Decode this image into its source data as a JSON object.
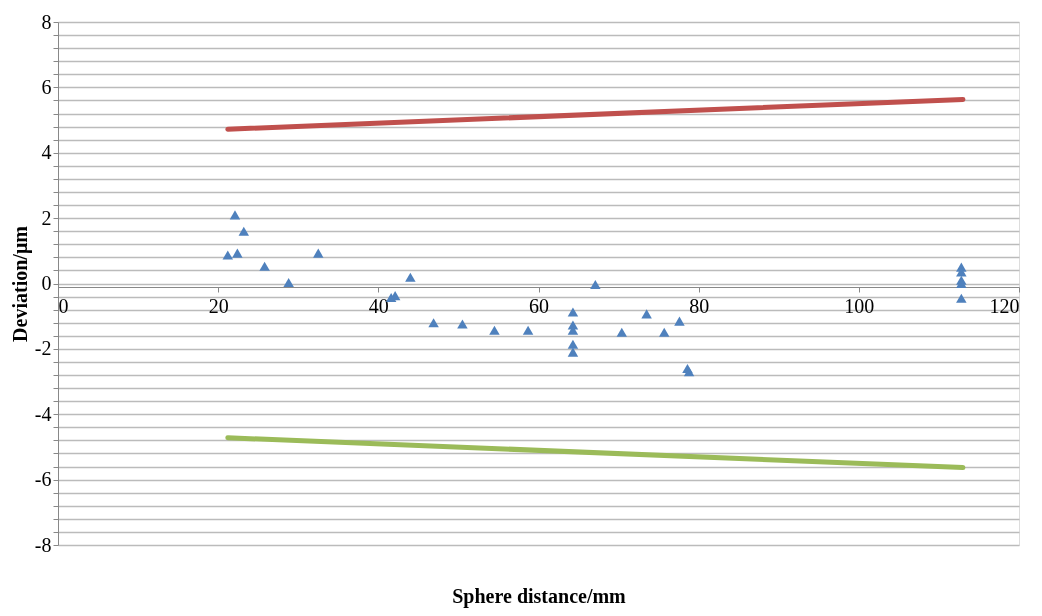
{
  "chart_data": {
    "type": "scatter",
    "xlabel": "Sphere distance/mm",
    "ylabel": "Deviation/μm",
    "xlim": [
      0,
      120
    ],
    "xticks": [
      0,
      20,
      40,
      60,
      80,
      100,
      120
    ],
    "ylim": [
      -8,
      8
    ],
    "yticks": [
      -8,
      {
        "value": -7.6,
        "label": null
      },
      {
        "value": -7.2,
        "label": null
      },
      {
        "value": -6.8,
        "label": null
      },
      {
        "value": -6.4,
        "label": null
      },
      -6,
      {
        "value": -5.6,
        "label": null
      },
      {
        "value": -5.2,
        "label": null
      },
      {
        "value": -4.8,
        "label": null
      },
      {
        "value": -4.4,
        "label": null
      },
      -4,
      {
        "value": -3.6,
        "label": null
      },
      {
        "value": -3.2,
        "label": null
      },
      {
        "value": -2.8,
        "label": null
      },
      {
        "value": -2.4,
        "label": null
      },
      -2,
      {
        "value": -1.6,
        "label": null
      },
      {
        "value": -1.2,
        "label": null
      },
      {
        "value": -0.8,
        "label": null
      },
      {
        "value": -0.4,
        "label": null
      },
      0,
      {
        "value": 0.4,
        "label": null
      },
      {
        "value": 0.8,
        "label": null
      },
      {
        "value": 1.2,
        "label": null
      },
      {
        "value": 1.6,
        "label": null
      },
      2,
      {
        "value": 2.4,
        "label": null
      },
      {
        "value": 2.8,
        "label": null
      },
      {
        "value": 3.2,
        "label": null
      },
      {
        "value": 3.6,
        "label": null
      },
      4,
      {
        "value": 4.4,
        "label": null
      },
      {
        "value": 4.8,
        "label": null
      },
      {
        "value": 5.2,
        "label": null
      },
      {
        "value": 5.6,
        "label": null
      },
      6,
      {
        "value": 6.4,
        "label": null
      },
      {
        "value": 6.8,
        "label": null
      },
      {
        "value": 7.2,
        "label": null
      },
      {
        "value": 7.6,
        "label": null
      },
      8
    ],
    "grid": "y",
    "marker": "triangle",
    "series": [
      {
        "color": "#4f81bd",
        "x": [
          21.2,
          22.1,
          22.4,
          23.2,
          25.8,
          28.8,
          32.5,
          41.6,
          42.1,
          44.0,
          46.9,
          50.5,
          54.5,
          58.7,
          64.3,
          64.3,
          64.3,
          64.3,
          64.3,
          67.1,
          70.4,
          73.5,
          75.7,
          77.6,
          78.6,
          78.8,
          112.8,
          112.8,
          112.8,
          112.8,
          112.8
        ],
        "values": [
          0.87,
          2.1,
          0.93,
          1.6,
          0.53,
          0.03,
          0.93,
          -0.43,
          -0.37,
          0.19,
          -1.2,
          -1.24,
          -1.43,
          -1.43,
          -0.87,
          -1.27,
          -1.43,
          -1.86,
          -2.1,
          -0.03,
          -1.49,
          -0.93,
          -1.49,
          -1.15,
          -2.6,
          -2.7,
          0.5,
          0.35,
          0.1,
          0.0,
          -0.45
        ]
      },
      {
        "type": "line",
        "color": "#c0504d",
        "marker": "none",
        "line_style": "solid",
        "x": [
          21.2,
          113
        ],
        "values": [
          4.72,
          5.63
        ]
      },
      {
        "type": "line",
        "color": "#9bbb59",
        "marker": "none",
        "line_style": "solid",
        "x": [
          21.2,
          113
        ],
        "values": [
          -4.72,
          -5.63
        ]
      }
    ]
  }
}
